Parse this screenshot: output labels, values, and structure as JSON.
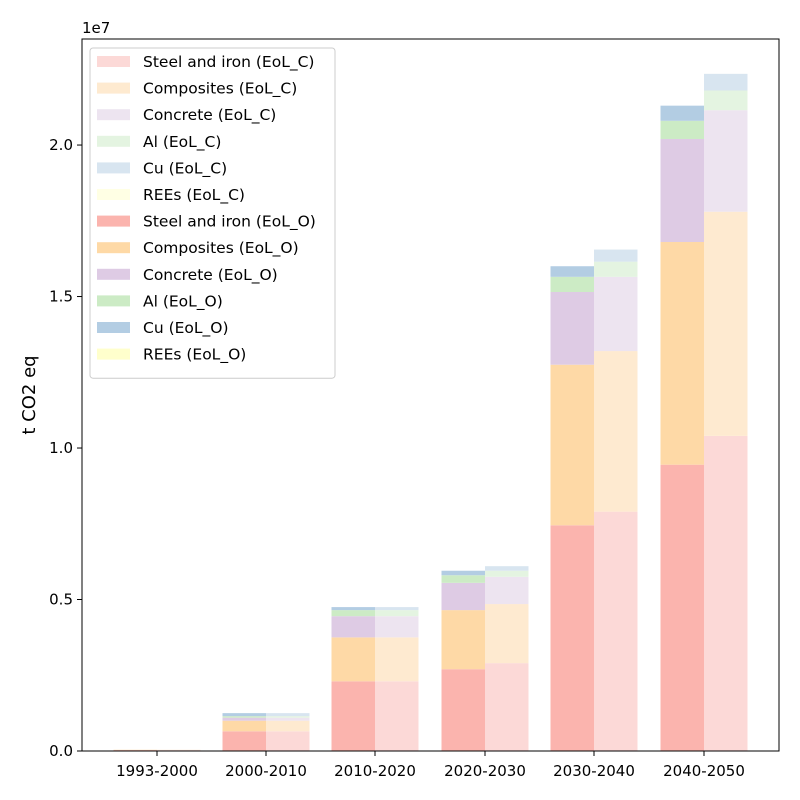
{
  "chart_data": {
    "type": "bar",
    "stacked": true,
    "grouped": true,
    "title": "",
    "xlabel": "",
    "ylabel": "t CO2 eq",
    "y_scale_label": "1e7",
    "ylim": [
      0,
      2.35
    ],
    "yticks": [
      "0.0",
      "0.5",
      "1.0",
      "1.5",
      "2.0"
    ],
    "ytick_values": [
      0,
      0.5,
      1.0,
      1.5,
      2.0
    ],
    "categories": [
      "1993-2000",
      "2000-2010",
      "2010-2020",
      "2020-2030",
      "2030-2040",
      "2040-2050"
    ],
    "groups": [
      {
        "name": "EoL_O",
        "series": [
          {
            "name": "Steel and iron (EoL_O)",
            "color": "#fbb4ae",
            "values": [
              0.003,
              0.065,
              0.23,
              0.27,
              0.745,
              0.945
            ]
          },
          {
            "name": "Composites (EoL_O)",
            "color": "#fed9a6",
            "values": [
              0.001,
              0.035,
              0.145,
              0.195,
              0.53,
              0.735
            ]
          },
          {
            "name": "Concrete (EoL_O)",
            "color": "#decbe4",
            "values": [
              0.0,
              0.01,
              0.07,
              0.09,
              0.24,
              0.34
            ]
          },
          {
            "name": "Al (EoL_O)",
            "color": "#ccebc5",
            "values": [
              0.0,
              0.005,
              0.02,
              0.025,
              0.05,
              0.06
            ]
          },
          {
            "name": "Cu (EoL_O)",
            "color": "#b3cde3",
            "values": [
              0.0,
              0.01,
              0.01,
              0.015,
              0.035,
              0.05
            ]
          },
          {
            "name": "REEs (EoL_O)",
            "color": "#ffffcc",
            "values": [
              0.0,
              0.0,
              0.0,
              0.0,
              0.0,
              0.0
            ]
          }
        ]
      },
      {
        "name": "EoL_C",
        "series": [
          {
            "name": "Steel and iron (EoL_C)",
            "color": "#fcd9d7",
            "values": [
              0.003,
              0.065,
              0.23,
              0.29,
              0.79,
              1.04
            ]
          },
          {
            "name": "Composites (EoL_C)",
            "color": "#feead0",
            "values": [
              0.001,
              0.035,
              0.145,
              0.195,
              0.53,
              0.74
            ]
          },
          {
            "name": "Concrete (EoL_C)",
            "color": "#ede4f0",
            "values": [
              0.0,
              0.01,
              0.07,
              0.09,
              0.245,
              0.335
            ]
          },
          {
            "name": "Al (EoL_C)",
            "color": "#e4f4e1",
            "values": [
              0.0,
              0.005,
              0.02,
              0.02,
              0.05,
              0.065
            ]
          },
          {
            "name": "Cu (EoL_C)",
            "color": "#d8e5f0",
            "values": [
              0.0,
              0.01,
              0.01,
              0.015,
              0.04,
              0.055
            ]
          },
          {
            "name": "REEs (EoL_C)",
            "color": "#ffffe4",
            "values": [
              0.0,
              0.0,
              0.0,
              0.0,
              0.0,
              0.0
            ]
          }
        ]
      }
    ],
    "legend": {
      "placement": "top-left",
      "entries": [
        "Steel and iron (EoL_C)",
        "Composites (EoL_C)",
        "Concrete (EoL_C)",
        "Al (EoL_C)",
        "Cu (EoL_C)",
        "REEs (EoL_C)",
        "Steel and iron (EoL_O)",
        "Composites (EoL_O)",
        "Concrete (EoL_O)",
        "Al (EoL_O)",
        "Cu (EoL_O)",
        "REEs (EoL_O)"
      ]
    },
    "grid": false
  }
}
